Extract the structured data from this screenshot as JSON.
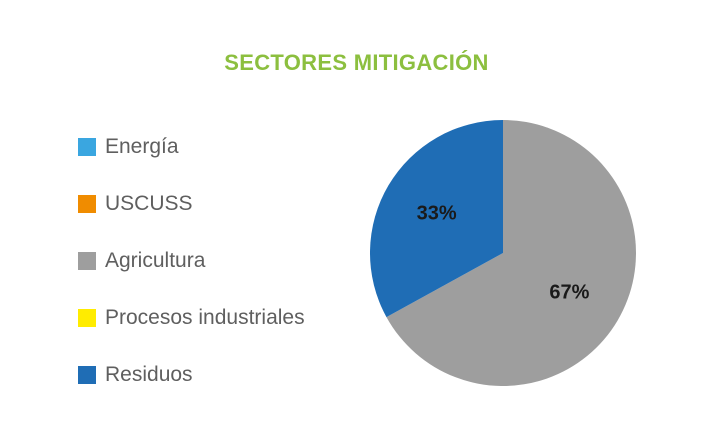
{
  "chart_data": {
    "type": "pie",
    "title": "SECTORES MITIGACIÓN",
    "legend_position": "left",
    "categories": [
      "Energía",
      "USCUSS",
      "Agricultura",
      "Procesos industriales",
      "Residuos"
    ],
    "values": [
      0,
      0,
      67,
      0,
      33
    ],
    "data_labels": [
      "",
      "",
      "67%",
      "",
      "33%"
    ],
    "colors": [
      "#3aa6e0",
      "#f08c00",
      "#9e9e9e",
      "#ffec00",
      "#1f6db5"
    ],
    "start_angle_deg": 0,
    "direction": "clockwise"
  }
}
